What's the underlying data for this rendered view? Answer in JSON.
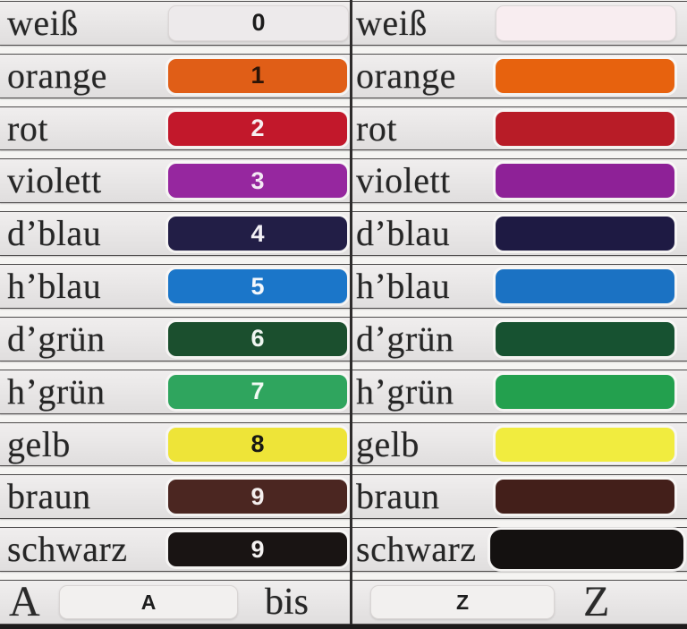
{
  "rows": [
    {
      "label": "weiß",
      "digit": "0",
      "digit_color": "#1c1c1c",
      "left_bar": "#edeaeb",
      "right_bar": "#f8edf0"
    },
    {
      "label": "orange",
      "digit": "1",
      "digit_color": "#2b1407",
      "left_bar": "#e05e17",
      "right_bar": "#e7620e"
    },
    {
      "label": "rot",
      "digit": "2",
      "digit_color": "#f6eef0",
      "left_bar": "#c2182b",
      "right_bar": "#b81c27"
    },
    {
      "label": "violett",
      "digit": "3",
      "digit_color": "#f3e8f4",
      "left_bar": "#96279f",
      "right_bar": "#8e2197"
    },
    {
      "label": "d’blau",
      "digit": "4",
      "digit_color": "#f2f0f5",
      "left_bar": "#221e46",
      "right_bar": "#1e1a43"
    },
    {
      "label": "h’blau",
      "digit": "5",
      "digit_color": "#f4f8fc",
      "left_bar": "#1b76c9",
      "right_bar": "#1b72c3"
    },
    {
      "label": "d’grün",
      "digit": "6",
      "digit_color": "#eef5f0",
      "left_bar": "#1b4f2e",
      "right_bar": "#175231"
    },
    {
      "label": "h’grün",
      "digit": "7",
      "digit_color": "#f2faf4",
      "left_bar": "#2fa55e",
      "right_bar": "#23a04e"
    },
    {
      "label": "gelb",
      "digit": "8",
      "digit_color": "#191914",
      "left_bar": "#eee438",
      "right_bar": "#f1ec3f"
    },
    {
      "label": "braun",
      "digit": "9",
      "digit_color": "#f4efee",
      "left_bar": "#4b2621",
      "right_bar": "#431f1a"
    },
    {
      "label": "schwarz",
      "digit": "9",
      "digit_color": "#f4f2f1",
      "left_bar": "#191413",
      "right_bar": "#141110"
    }
  ],
  "footer": {
    "left_letter": "A",
    "left_bar_letter": "A",
    "separator": "bis",
    "right_bar_letter": "Z",
    "right_letter": "Z"
  }
}
